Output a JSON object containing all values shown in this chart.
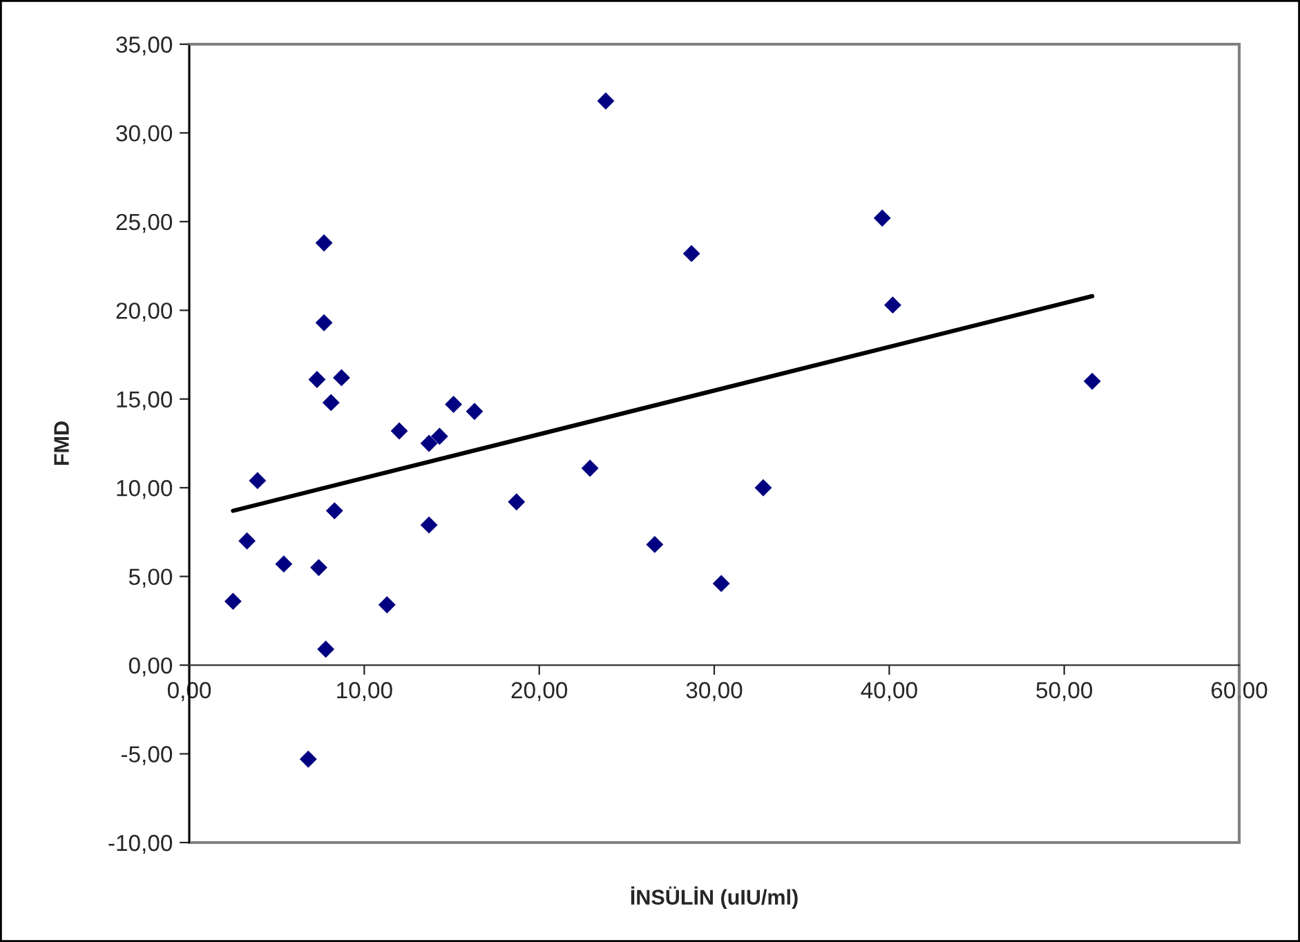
{
  "chart_data": {
    "type": "scatter",
    "xlabel": "İNSÜLİN (uIU/ml)",
    "ylabel": "FMD",
    "xlim": [
      0,
      60
    ],
    "ylim": [
      -10,
      35
    ],
    "xticks": [
      {
        "value": 0,
        "label": "0,00"
      },
      {
        "value": 10,
        "label": "10,00"
      },
      {
        "value": 20,
        "label": "20,00"
      },
      {
        "value": 30,
        "label": "30,00"
      },
      {
        "value": 40,
        "label": "40,00"
      },
      {
        "value": 50,
        "label": "50,00"
      },
      {
        "value": 60,
        "label": "60,00"
      }
    ],
    "yticks": [
      {
        "value": -10,
        "label": "-10,00"
      },
      {
        "value": -5,
        "label": "-5,00"
      },
      {
        "value": 0,
        "label": "0,00"
      },
      {
        "value": 5,
        "label": "5,00"
      },
      {
        "value": 10,
        "label": "10,00"
      },
      {
        "value": 15,
        "label": "15,00"
      },
      {
        "value": 20,
        "label": "20,00"
      },
      {
        "value": 25,
        "label": "25,00"
      },
      {
        "value": 30,
        "label": "30,00"
      },
      {
        "value": 35,
        "label": "35,00"
      }
    ],
    "grid": false,
    "legend": false,
    "series": [
      {
        "type": "scatter",
        "color": "#000080",
        "marker": "diamond",
        "x": [
          2.5,
          3.3,
          3.9,
          5.4,
          6.8,
          7.7,
          7.7,
          7.3,
          8.7,
          8.1,
          8.3,
          7.4,
          7.8,
          11.3,
          12.0,
          13.7,
          14.3,
          13.7,
          15.1,
          16.3,
          18.7,
          22.9,
          23.8,
          26.6,
          28.7,
          30.4,
          32.8,
          39.6,
          40.2,
          51.6
        ],
        "values": [
          3.6,
          7.0,
          10.4,
          5.7,
          -5.3,
          23.8,
          19.3,
          16.1,
          16.2,
          14.8,
          8.7,
          5.5,
          0.9,
          3.4,
          13.2,
          12.5,
          12.9,
          7.9,
          14.7,
          14.3,
          9.2,
          11.1,
          31.8,
          6.8,
          23.2,
          4.6,
          10.0,
          25.2,
          20.3,
          16.0
        ]
      },
      {
        "type": "line",
        "color": "#000000",
        "line_style": "solid",
        "marker": "none",
        "x": [
          2.5,
          51.6
        ],
        "values": [
          8.7,
          20.8
        ]
      }
    ]
  }
}
